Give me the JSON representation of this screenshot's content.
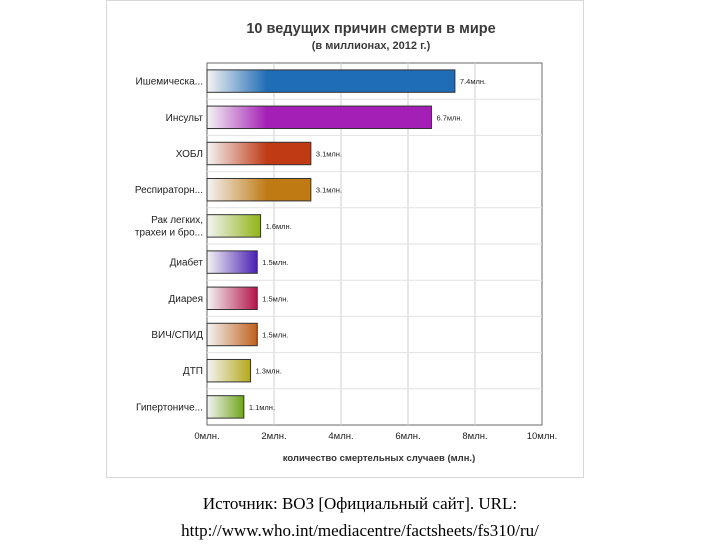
{
  "chart_data": {
    "type": "bar",
    "orientation": "horizontal",
    "title": "10 ведущих причин смерти в мире",
    "subtitle": "(в миллионах, 2012 г.)",
    "xlabel": "количество смертельных случаев (млн.)",
    "ylabel": "",
    "xlim": [
      0,
      10
    ],
    "grid": true,
    "x_ticks": [
      {
        "value": 0,
        "label": "0млн."
      },
      {
        "value": 2,
        "label": "2млн."
      },
      {
        "value": 4,
        "label": "4млн."
      },
      {
        "value": 6,
        "label": "6млн."
      },
      {
        "value": 8,
        "label": "8млн."
      },
      {
        "value": 10,
        "label": "10млн."
      }
    ],
    "categories": [
      [
        "Ишемическа..."
      ],
      [
        "Инсульт"
      ],
      [
        "ХОБЛ"
      ],
      [
        "Респираторн..."
      ],
      [
        "Рак легких,",
        "трахеи и бро..."
      ],
      [
        "Диабет"
      ],
      [
        "Диарея"
      ],
      [
        "ВИЧ/СПИД"
      ],
      [
        "ДТП"
      ],
      [
        "Гипертониче..."
      ]
    ],
    "values": [
      7.4,
      6.7,
      3.1,
      3.1,
      1.6,
      1.5,
      1.5,
      1.5,
      1.3,
      1.1
    ],
    "value_labels": [
      "7.4млн.",
      "6.7млн.",
      "3.1млн.",
      "3.1млн.",
      "1.6млн.",
      "1.5млн.",
      "1.5млн.",
      "1.5млн.",
      "1.3млн.",
      "1.1млн."
    ],
    "colors": [
      "#1f6db5",
      "#a41fb5",
      "#c03a14",
      "#c07a14",
      "#8fb514",
      "#4a1fb5",
      "#b5144a",
      "#c0601a",
      "#b5a81a",
      "#6fa51a"
    ]
  },
  "source": {
    "line1": "Источник: ВОЗ [Официальный сайт]. URL:",
    "line2": "http://www.who.int/mediacentre/factsheets/fs310/ru/"
  }
}
